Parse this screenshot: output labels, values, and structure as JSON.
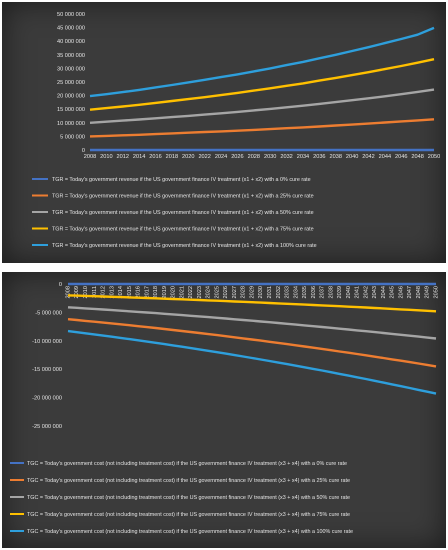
{
  "chart_data": [
    {
      "type": "line",
      "categories": [
        "2008",
        "2010",
        "2012",
        "2014",
        "2016",
        "2018",
        "2020",
        "2022",
        "2024",
        "2026",
        "2028",
        "2030",
        "2032",
        "2034",
        "2036",
        "2038",
        "2040",
        "2042",
        "2044",
        "2046",
        "2048",
        "2050"
      ],
      "ylim": [
        0,
        50000000
      ],
      "yticks": [
        "0",
        "5 000 000",
        "10 000 000",
        "15 000 000",
        "20 000 000",
        "25 000 000",
        "30 000 000",
        "35 000 000",
        "40 000 000",
        "45 000 000",
        "50 000 000"
      ],
      "grid": false,
      "legend_position": "bottom",
      "series": [
        {
          "name": "TGR = Today's government revenue if the US government finance IV treatment (x1 + x2) with a 0% cure rate",
          "color": "#4472c4",
          "values": [
            0,
            0,
            0,
            0,
            0,
            0,
            0,
            0,
            0,
            0,
            0,
            0,
            0,
            0,
            0,
            0,
            0,
            0,
            0,
            0,
            0,
            0
          ]
        },
        {
          "name": "TGR = Today's government revenue if the US government finance IV treatment (x1 + x2) with a 25% cure rate",
          "color": "#ed7d31",
          "values": [
            5000000,
            5200000,
            5400000,
            5600000,
            5850000,
            6100000,
            6350000,
            6600000,
            6850000,
            7100000,
            7400000,
            7700000,
            8000000,
            8300000,
            8650000,
            9000000,
            9350000,
            9700000,
            10100000,
            10500000,
            10900000,
            11300000
          ]
        },
        {
          "name": "TGR = Today's government revenue if the US government finance IV treatment (x1 + x2) with a 50% cure rate",
          "color": "#a5a5a5",
          "values": [
            10000000,
            10400000,
            10800000,
            11200000,
            11650000,
            12100000,
            12550000,
            13000000,
            13500000,
            14000000,
            14550000,
            15100000,
            15700000,
            16300000,
            16950000,
            17600000,
            18300000,
            19000000,
            19750000,
            20500000,
            21350000,
            22200000
          ]
        },
        {
          "name": "TGR = Today's government revenue if the US government finance IV treatment (x1 + x2) with a 75% cure rate",
          "color": "#ffc000",
          "values": [
            14800000,
            15400000,
            16000000,
            16600000,
            17300000,
            18000000,
            18700000,
            19400000,
            20200000,
            21000000,
            21850000,
            22700000,
            23600000,
            24500000,
            25500000,
            26500000,
            27550000,
            28600000,
            29750000,
            30900000,
            32100000,
            33400000
          ]
        },
        {
          "name": "TGR = Today's government revenue if the US government finance IV treatment (x1 + x2) with a 100% cure rate",
          "color": "#2e9fdc",
          "values": [
            19800000,
            20500000,
            21300000,
            22100000,
            23000000,
            23900000,
            24850000,
            25800000,
            26800000,
            27800000,
            28900000,
            30000000,
            31200000,
            32400000,
            33700000,
            35000000,
            36400000,
            37800000,
            39300000,
            40800000,
            42400000,
            44900000
          ]
        }
      ]
    },
    {
      "type": "line",
      "categories": [
        "2008",
        "2009",
        "2010",
        "2011",
        "2012",
        "2013",
        "2014",
        "2015",
        "2016",
        "2017",
        "2018",
        "2019",
        "2020",
        "2021",
        "2022",
        "2023",
        "2024",
        "2025",
        "2026",
        "2027",
        "2028",
        "2029",
        "2030",
        "2031",
        "2032",
        "2033",
        "2034",
        "2035",
        "2036",
        "2037",
        "2038",
        "2039",
        "2040",
        "2041",
        "2042",
        "2043",
        "2044",
        "2045",
        "2046",
        "2047",
        "2048",
        "2049",
        "2050"
      ],
      "ylim": [
        -25000000,
        0
      ],
      "yticks": [
        "0",
        "-5 000 000",
        "-10 000 000",
        "-15 000 000",
        "-20 000 000",
        "-25 000 000"
      ],
      "grid": false,
      "legend_position": "bottom",
      "series": [
        {
          "name": "TGC = Today's government cost (not including treatment cost) if the US government finance IV treatment (x3 + x4) with a 0% cure rate",
          "color": "#4472c4",
          "start": 0,
          "end": 0
        },
        {
          "name": "TGC = Today's government cost (not including treatment cost) if the US government finance IV treatment (x3 + x4) with a 25% cure rate",
          "color": "#ed7d31",
          "start": -6200000,
          "end": -14500000
        },
        {
          "name": "TGC = Today's government cost (not including treatment cost) if the US government finance IV treatment (x3 + x4) with a 50% cure rate",
          "color": "#a5a5a5",
          "start": -4100000,
          "end": -9600000
        },
        {
          "name": "TGC = Today's government cost (not including treatment cost) if the US government finance IV treatment (x3 + x4) with a 75% cure rate",
          "color": "#ffc000",
          "start": -2000000,
          "end": -4800000
        },
        {
          "name": "TGC = Today's government cost (not including treatment cost) if the US government finance IV treatment (x3 + x4) with a 100% cure rate",
          "color": "#2e9fdc",
          "start": -8300000,
          "end": -19300000
        }
      ]
    }
  ]
}
